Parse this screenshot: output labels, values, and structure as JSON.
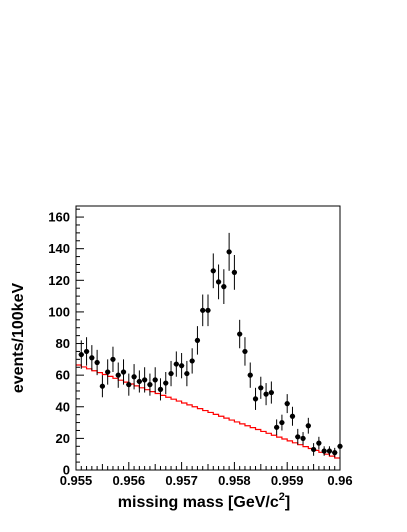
{
  "chart_data": {
    "type": "scatter",
    "xlabel": "missing mass [GeV/c",
    "xlabel_sup": "2",
    "xlabel_end": "]",
    "ylabel": "events/100keV",
    "xlim": [
      0.955,
      0.96
    ],
    "ylim": [
      0,
      167
    ],
    "x_ticks": [
      {
        "value": 0.955,
        "label": "0.955"
      },
      {
        "value": 0.956,
        "label": "0.956"
      },
      {
        "value": 0.957,
        "label": "0.957"
      },
      {
        "value": 0.958,
        "label": "0.958"
      },
      {
        "value": 0.959,
        "label": "0.959"
      },
      {
        "value": 0.96,
        "label": "0.96"
      }
    ],
    "y_ticks": [
      {
        "value": 0,
        "label": "0"
      },
      {
        "value": 20,
        "label": "20"
      },
      {
        "value": 40,
        "label": "40"
      },
      {
        "value": 60,
        "label": "60"
      },
      {
        "value": 80,
        "label": "80"
      },
      {
        "value": 100,
        "label": "100"
      },
      {
        "value": 120,
        "label": "120"
      },
      {
        "value": 140,
        "label": "140"
      },
      {
        "value": 160,
        "label": "160"
      }
    ],
    "grid": false,
    "colors": {
      "points": "#000000",
      "fit": "#ff0000"
    },
    "data_series": {
      "x": [
        0.9551,
        0.9552,
        0.9553,
        0.9554,
        0.9555,
        0.9556,
        0.9557,
        0.9558,
        0.9559,
        0.956,
        0.9561,
        0.9562,
        0.9563,
        0.9564,
        0.9565,
        0.9566,
        0.9567,
        0.9568,
        0.9569,
        0.957,
        0.9571,
        0.9572,
        0.9573,
        0.9574,
        0.9575,
        0.9576,
        0.9577,
        0.9578,
        0.9579,
        0.958,
        0.9581,
        0.9582,
        0.9583,
        0.9584,
        0.9585,
        0.9586,
        0.9587,
        0.9588,
        0.9589,
        0.959,
        0.9591,
        0.9592,
        0.9593,
        0.9594,
        0.9595,
        0.9596,
        0.9597,
        0.9598,
        0.9599,
        0.96
      ],
      "y": [
        73,
        75,
        71,
        68,
        53,
        62,
        70,
        60,
        62,
        54,
        59,
        56,
        57,
        54,
        57,
        51,
        55,
        61,
        67,
        66,
        61,
        69,
        82,
        101,
        101,
        126,
        119,
        116,
        138,
        125,
        86,
        75,
        60,
        45,
        52,
        48,
        49,
        27,
        30,
        42,
        34,
        21,
        20,
        28,
        13,
        17,
        12,
        12,
        11,
        15
      ],
      "yerr": [
        9,
        9,
        8,
        8,
        7,
        8,
        8,
        8,
        8,
        7,
        8,
        7,
        8,
        7,
        8,
        7,
        7,
        8,
        8,
        8,
        8,
        8,
        9,
        10,
        10,
        11,
        11,
        11,
        12,
        11,
        9,
        9,
        8,
        7,
        7,
        7,
        7,
        5,
        5,
        6,
        6,
        5,
        4,
        5,
        4,
        4,
        3,
        3,
        3,
        4
      ]
    },
    "fit_line": {
      "x_start": 0.955,
      "x_end": 0.96,
      "y_start": 67,
      "y_end": 7
    }
  }
}
